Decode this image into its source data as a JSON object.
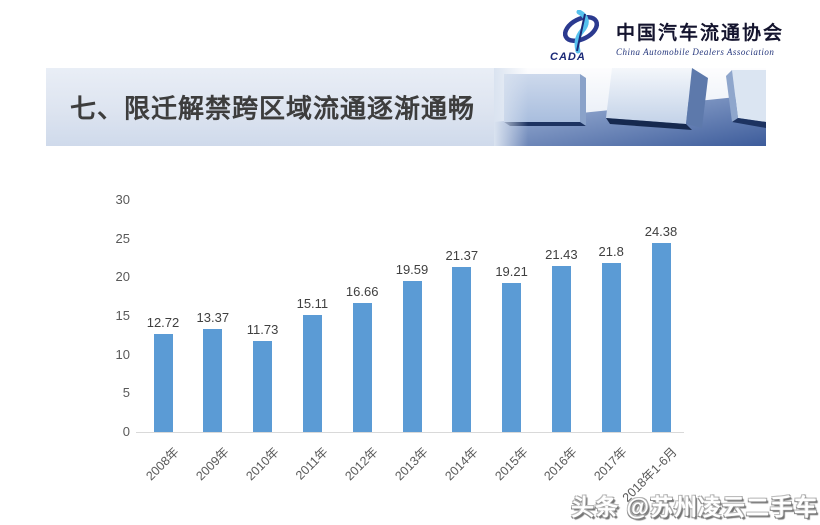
{
  "logo": {
    "name": "中国汽车流通协会",
    "english": "China Automobile Dealers Association",
    "acronym": "CADA",
    "colors": {
      "ring": "#2b3a8f",
      "accent": "#56c2ee",
      "text": "#14142e"
    }
  },
  "header": {
    "title": "七、限迁解禁跨区域流通逐渐通畅"
  },
  "chart_data": {
    "type": "bar",
    "title": "",
    "xlabel": "",
    "ylabel": "",
    "categories": [
      "2008年",
      "2009年",
      "2010年",
      "2011年",
      "2012年",
      "2013年",
      "2014年",
      "2015年",
      "2016年",
      "2017年",
      "2018年1-6月"
    ],
    "values": [
      12.72,
      13.37,
      11.73,
      15.11,
      16.66,
      19.59,
      21.37,
      19.21,
      21.43,
      21.8,
      24.38
    ],
    "ylim": [
      0,
      30
    ],
    "yticks": [
      0,
      5,
      10,
      15,
      20,
      25,
      30
    ],
    "bar_color": "#5B9BD5",
    "label_color": "#404040",
    "axis_color": "#d9d9d9",
    "tick_color": "#595959",
    "grid": false,
    "legend": false
  },
  "watermark": {
    "text": "头条 @苏州凌云二手车"
  }
}
